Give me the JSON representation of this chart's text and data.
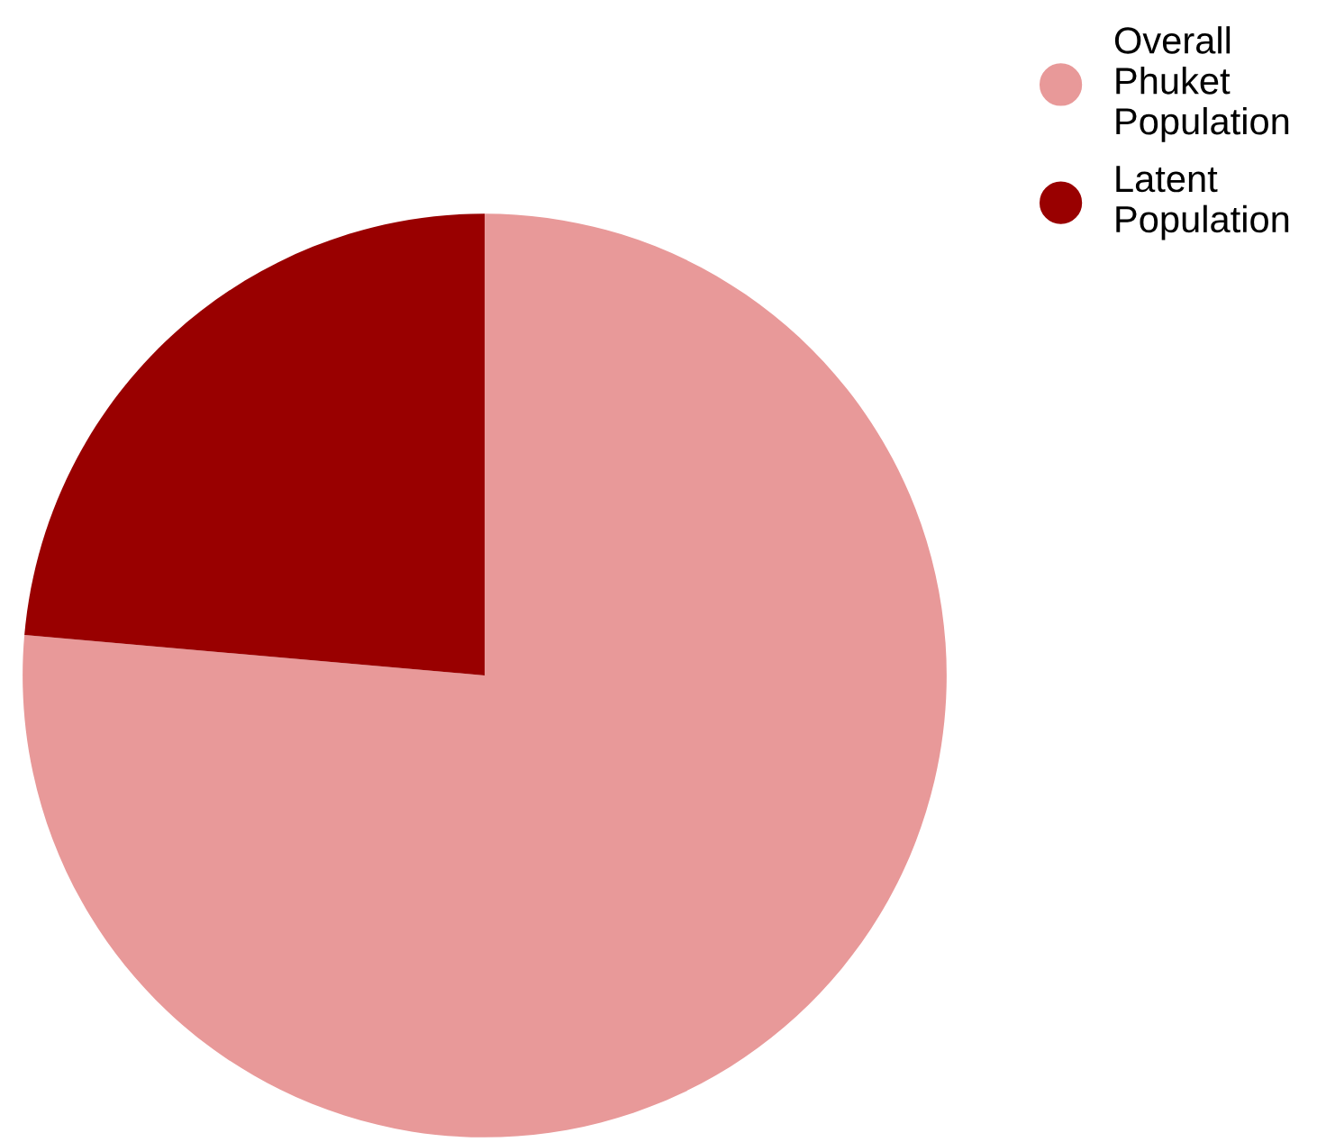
{
  "chart_data": {
    "type": "pie",
    "categories": [
      "Overall Phuket Population",
      "Latent Population"
    ],
    "values": [
      76.4,
      23.6
    ],
    "colors": [
      "#e89999",
      "#990000"
    ],
    "legend": "top right"
  }
}
